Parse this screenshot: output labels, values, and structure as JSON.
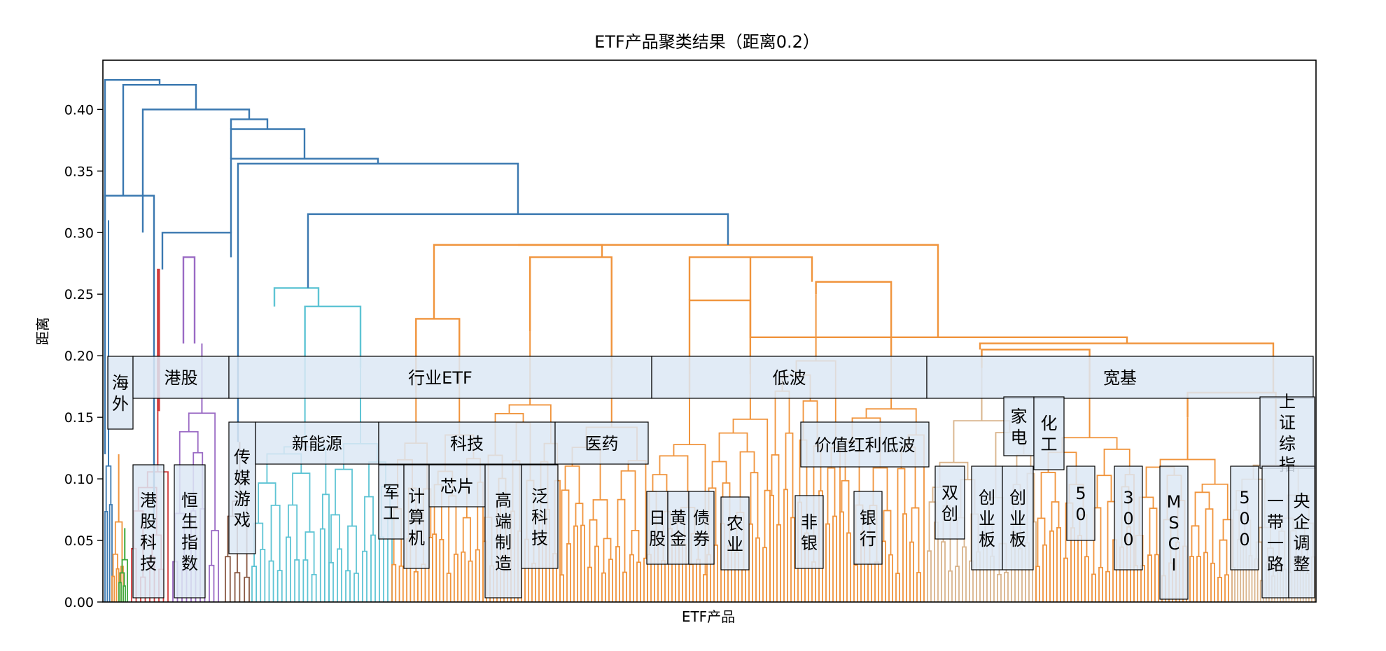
{
  "chart_data": {
    "type": "dendrogram",
    "title": "ETF产品聚类结果（距离0.2）",
    "xlabel": "ETF产品",
    "ylabel": "距离",
    "ylim": [
      0,
      0.44
    ],
    "yticks": [
      "0.00",
      "0.05",
      "0.10",
      "0.15",
      "0.20",
      "0.25",
      "0.30",
      "0.35",
      "0.40"
    ],
    "cut_distance": 0.2,
    "colors": {
      "above_cut": "#3a78b0",
      "red": "#d13c3c",
      "purple": "#9a6ac4",
      "cyan": "#5ec4d4",
      "orange": "#f0943c",
      "tan": "#d9b48c",
      "green": "#3aa83a",
      "brown": "#8a5a44",
      "pink": "#e07fb8",
      "label_fill": "#dce8f4"
    },
    "merge_heights": [
      0.424,
      0.42,
      0.4,
      0.392,
      0.384,
      0.36,
      0.356,
      0.33,
      0.315,
      0.3,
      0.29,
      0.28,
      0.28,
      0.27,
      0.265,
      0.26,
      0.255,
      0.24,
      0.22,
      0.21,
      0.2
    ],
    "groups_level1": [
      {
        "label": "海外",
        "h": 0.32
      },
      {
        "label": "港股",
        "h": 0.27
      },
      {
        "label": "行业ETF",
        "h": 0.29
      },
      {
        "label": "低波",
        "h": 0.265
      },
      {
        "label": "宽基",
        "h": 0.21
      }
    ],
    "groups_level2": [
      "传媒游戏",
      "新能源",
      "科技",
      "医药",
      "价值红利低波",
      "家电",
      "化工",
      "上证综指"
    ],
    "groups_level3": [
      "港股科技",
      "恒生指数",
      "军工",
      "计算机",
      "芯片",
      "高端制造",
      "泛科技",
      "日股",
      "黄金",
      "债券",
      "农业",
      "非银",
      "银行",
      "双创",
      "创业板",
      "创业板",
      "50",
      "300",
      "MSCI",
      "500",
      "一带一路",
      "央企调整"
    ]
  }
}
